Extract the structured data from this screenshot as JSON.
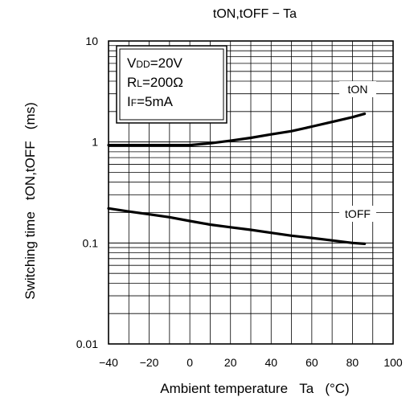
{
  "chart_data": {
    "type": "line",
    "title": "tON,tOFF − Ta",
    "xlabel": "Ambient temperature   Ta   (°C)",
    "ylabel": "Switching time   tON,tOFF   (ms)",
    "xlim": [
      -40,
      100
    ],
    "ylim": [
      0.01,
      10
    ],
    "yscale": "log",
    "grid": true,
    "x_ticks": [
      {
        "value": -40,
        "label": "−40"
      },
      {
        "value": -20,
        "label": "−20"
      },
      {
        "value": 0,
        "label": "0"
      },
      {
        "value": 20,
        "label": "20"
      },
      {
        "value": 40,
        "label": "40"
      },
      {
        "value": 60,
        "label": "60"
      },
      {
        "value": 80,
        "label": "80"
      },
      {
        "value": 100,
        "label": "100"
      }
    ],
    "y_ticks": [
      {
        "value": 10,
        "label": "10"
      },
      {
        "value": 1,
        "label": "1"
      },
      {
        "value": 0.1,
        "label": "0.1"
      },
      {
        "value": 0.01,
        "label": "0.01"
      }
    ],
    "conditions": [
      {
        "main": "V",
        "sub": "DD",
        "rest": "=20V"
      },
      {
        "main": "R",
        "sub": "L",
        "rest": "=200Ω"
      },
      {
        "main": "I",
        "sub": "F",
        "rest": "=5mA"
      }
    ],
    "series": [
      {
        "name": "tON",
        "x": [
          -40,
          -20,
          0,
          10,
          20,
          30,
          40,
          50,
          60,
          70,
          80,
          86
        ],
        "y": [
          0.93,
          0.93,
          0.93,
          0.97,
          1.03,
          1.1,
          1.19,
          1.28,
          1.42,
          1.58,
          1.76,
          1.9
        ]
      },
      {
        "name": "tOFF",
        "x": [
          -40,
          -30,
          -20,
          -10,
          0,
          10,
          20,
          30,
          40,
          50,
          60,
          70,
          80,
          86
        ],
        "y": [
          0.22,
          0.205,
          0.192,
          0.18,
          0.165,
          0.152,
          0.143,
          0.135,
          0.126,
          0.118,
          0.112,
          0.106,
          0.1,
          0.098
        ]
      }
    ]
  }
}
